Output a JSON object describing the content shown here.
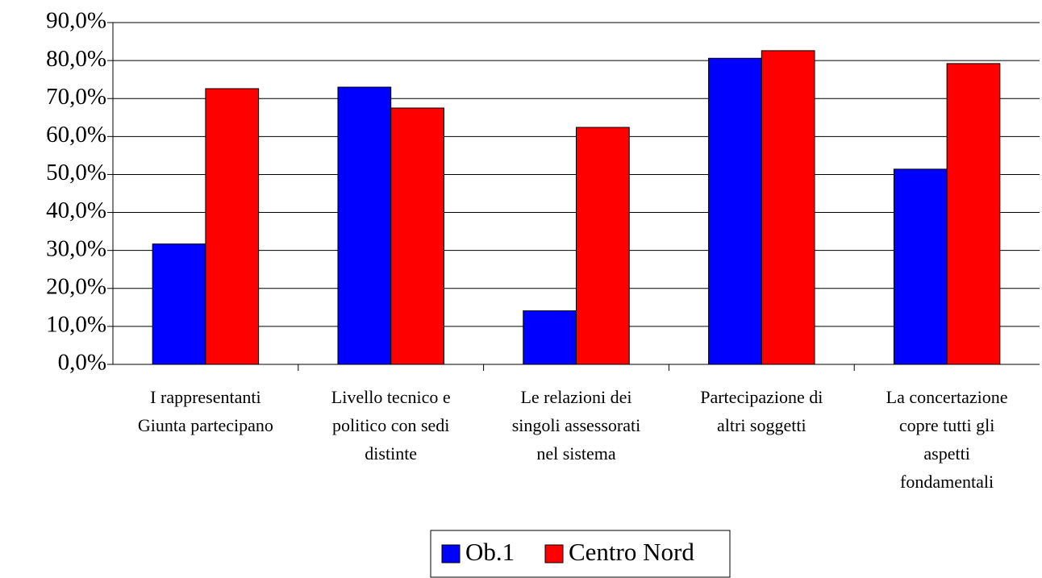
{
  "chart_data": {
    "type": "bar",
    "categories": [
      [
        "I rappresentanti",
        "Giunta partecipano"
      ],
      [
        "Livello tecnico e",
        "politico con sedi",
        "distinte"
      ],
      [
        "Le relazioni dei",
        "singoli assessorati",
        "nel sistema"
      ],
      [
        "Partecipazione di",
        "altri soggetti"
      ],
      [
        "La concertazione",
        "copre tutti gli",
        "aspetti",
        "fondamentali"
      ]
    ],
    "series": [
      {
        "name": "Ob.1",
        "color": "#0000ff",
        "values": [
          31.7,
          73.0,
          14.1,
          80.6,
          51.4
        ]
      },
      {
        "name": "Centro Nord",
        "color": "#ff0000",
        "values": [
          72.6,
          67.5,
          62.4,
          82.6,
          79.2
        ]
      }
    ],
    "ylim": [
      0,
      90
    ],
    "yticks": [
      {
        "value": 0,
        "label": "0,0%"
      },
      {
        "value": 10,
        "label": "10,0%"
      },
      {
        "value": 20,
        "label": "20,0%"
      },
      {
        "value": 30,
        "label": "30,0%"
      },
      {
        "value": 40,
        "label": "40,0%"
      },
      {
        "value": 50,
        "label": "50,0%"
      },
      {
        "value": 60,
        "label": "60,0%"
      },
      {
        "value": 70,
        "label": "70,0%"
      },
      {
        "value": 80,
        "label": "80,0%"
      },
      {
        "value": 90,
        "label": "90,0%"
      }
    ],
    "grid": true,
    "legend": "bottom"
  }
}
